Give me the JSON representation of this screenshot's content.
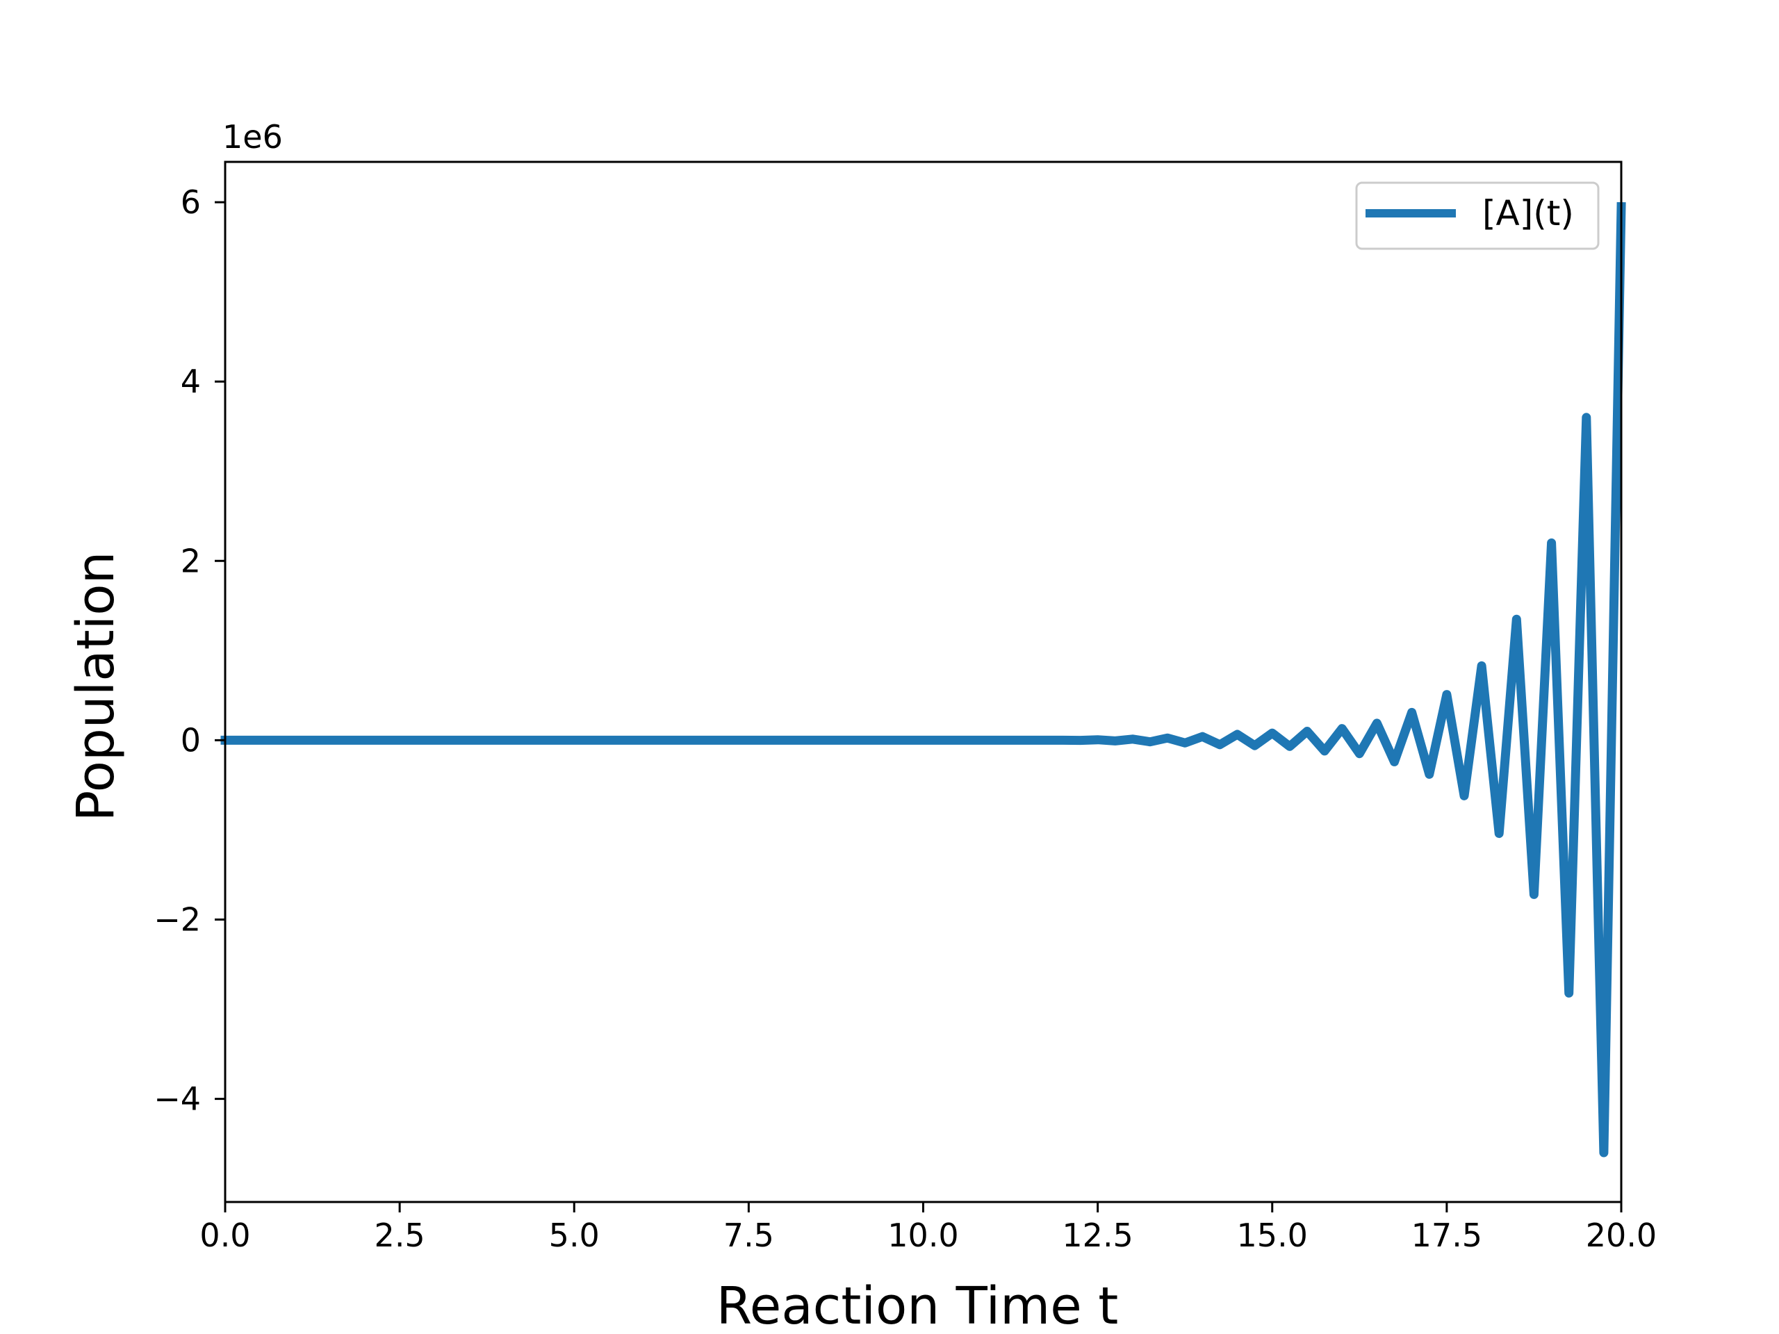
{
  "chart_data": {
    "type": "line",
    "title": "",
    "xlabel": "Reaction Time t",
    "ylabel": "Population",
    "y_offset_label": "1e6",
    "xlim": [
      0,
      20
    ],
    "ylim": [
      -5.15,
      6.45
    ],
    "y_scale_factor": 1000000,
    "grid": false,
    "legend_position": "top-right",
    "x_ticks": [
      "0.0",
      "2.5",
      "5.0",
      "7.5",
      "10.0",
      "12.5",
      "15.0",
      "17.5",
      "20.0"
    ],
    "y_ticks": [
      "−4",
      "−2",
      "0",
      "2",
      "4",
      "6"
    ],
    "color": "#1f77b4",
    "series": [
      {
        "name": "[A](t)",
        "x": [
          0,
          0.5,
          1,
          1.5,
          2,
          2.5,
          3,
          3.5,
          4,
          4.5,
          5,
          5.5,
          6,
          6.5,
          7,
          7.5,
          8,
          8.5,
          9,
          9.5,
          10,
          10.5,
          11,
          11.5,
          12,
          12.25,
          12.5,
          12.75,
          13,
          13.25,
          13.5,
          13.75,
          14,
          14.25,
          14.5,
          14.75,
          15,
          15.25,
          15.5,
          15.75,
          16,
          16.25,
          16.5,
          16.75,
          17,
          17.25,
          17.5,
          17.75,
          18,
          18.25,
          18.5,
          18.75,
          19,
          19.25,
          19.5,
          19.75,
          20
        ],
        "y": [
          0,
          0,
          0,
          0,
          0,
          0,
          0,
          0,
          0,
          0,
          0,
          0,
          0,
          0,
          0,
          0,
          0,
          0,
          0,
          0,
          0,
          0,
          0,
          0,
          0,
          -0.002,
          0.005,
          -0.008,
          0.012,
          -0.018,
          0.025,
          -0.03,
          0.04,
          -0.05,
          0.065,
          -0.06,
          0.08,
          -0.07,
          0.1,
          -0.12,
          0.13,
          -0.15,
          0.19,
          -0.24,
          0.31,
          -0.38,
          0.51,
          -0.62,
          0.83,
          -1.04,
          1.35,
          -1.72,
          2.2,
          -2.82,
          3.6,
          -4.6,
          5.95
        ]
      }
    ]
  }
}
